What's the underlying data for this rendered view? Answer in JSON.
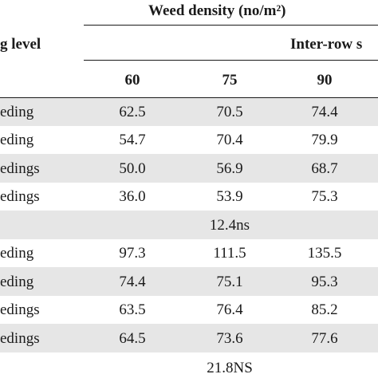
{
  "header": {
    "weed_density_title": "Weed density (no/m²)",
    "weeding_level_partial": "g level",
    "inter_row_partial": "Inter-row s",
    "col1": "60",
    "col2": "75",
    "col3": "90"
  },
  "rows": [
    {
      "label": "eding",
      "v1": "62.5",
      "v2": "70.5",
      "v3": "74.4"
    },
    {
      "label": "eding",
      "v1": "54.7",
      "v2": "70.4",
      "v3": "79.9"
    },
    {
      "label": "edings",
      "v1": "50.0",
      "v2": "56.9",
      "v3": "68.7"
    },
    {
      "label": "edings",
      "v1": "36.0",
      "v2": "53.9",
      "v3": "75.3"
    },
    {
      "label": "",
      "v1": "",
      "v2": "12.4ns",
      "v3": ""
    },
    {
      "label": "eding",
      "v1": "97.3",
      "v2": "111.5",
      "v3": "135.5"
    },
    {
      "label": "eding",
      "v1": "74.4",
      "v2": "75.1",
      "v3": "95.3"
    },
    {
      "label": "edings",
      "v1": "63.5",
      "v2": "76.4",
      "v3": "85.2"
    },
    {
      "label": "edings",
      "v1": "64.5",
      "v2": "73.6",
      "v3": "77.6"
    },
    {
      "label": "",
      "v1": "",
      "v2": "21.8NS",
      "v3": ""
    }
  ]
}
